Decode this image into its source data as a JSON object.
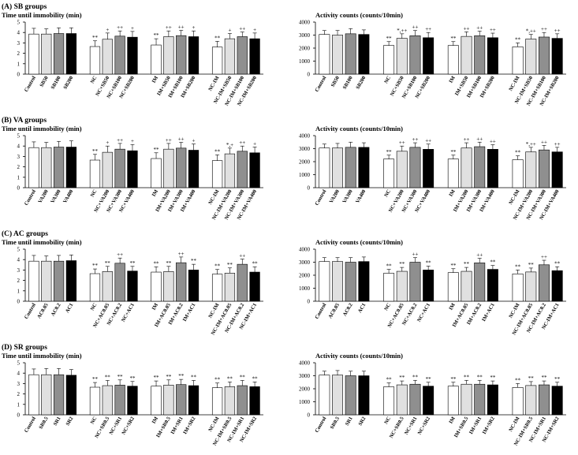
{
  "figure": {
    "sections": [
      {
        "title": "(A) SB groups",
        "left_title": "Time until immobility  (min)",
        "right_title": "Activity counts (counts/10min)",
        "categories": [
          "Control",
          "SB50",
          "SB100",
          "SB200",
          "NC",
          "NC+SB50",
          "NC+SB100",
          "NC+SB200",
          "IM",
          "IM+SB50",
          "IM+SB100",
          "IM+SB200",
          "NC-IM",
          "NC-IM+SB50",
          "NC-IM+SB100",
          "NC-IM+SB200"
        ]
      },
      {
        "title": "(B) VA groups",
        "left_title": "Time until immobility  (min)",
        "right_title": "Activity counts (counts/10min)",
        "categories": [
          "Control",
          "VA200",
          "VA300",
          "VA400",
          "NC",
          "NC+VA200",
          "NC+VA300",
          "NC+VA400",
          "IM",
          "IM+VA200",
          "IM+VA300",
          "IM+VA400",
          "NC-IM",
          "NC-IM+VA200",
          "NC-IM+VA300",
          "NC-IM+VA400"
        ]
      },
      {
        "title": "(C) AC groups",
        "left_title": "Time until immobility  (min)",
        "right_title": "Activity counts (counts/10min)",
        "categories": [
          "Control",
          "AC0.05",
          "AC0.2",
          "AC1",
          "NC",
          "NC+AC0.05",
          "NC+AC0.2",
          "NC+AC1",
          "IM",
          "IM+AC0.05",
          "IM+AC0.2",
          "IM+AC1",
          "NC-IM",
          "NC-IM+AC0.05",
          "NC-IM+AC0.2",
          "NC-IM+AC1"
        ]
      },
      {
        "title": "(D) SR groups",
        "left_title": "Time until immobility  (min)",
        "right_title": "Activity counts (counts/10min)",
        "categories": [
          "Control",
          "SR0.5",
          "SR1",
          "SR2",
          "NC",
          "NC+SR0.5",
          "NC+SR1",
          "NC+SR2",
          "IM",
          "IM+SR0.5",
          "IM+SR1",
          "IM+SR2",
          "NC-IM",
          "NC-IM+SR0.5",
          "NC-IM+SR1",
          "NC-IM+SR2"
        ]
      }
    ],
    "dose_colors": [
      "#ffffff",
      "#e0e0e0",
      "#8f8f8f",
      "#000000"
    ]
  },
  "chart_data": [
    {
      "type": "bar",
      "title": "Time until immobility  (min)",
      "ylim": [
        0,
        5
      ],
      "yticks": [
        0,
        1,
        2,
        3,
        4,
        5
      ],
      "categories": [
        "Control",
        "SB50",
        "SB100",
        "SB200",
        "NC",
        "NC+SB50",
        "NC+SB100",
        "NC+SB200",
        "IM",
        "IM+SB50",
        "IM+SB100",
        "IM+SB200",
        "NC-IM",
        "NC-IM+SB50",
        "NC-IM+SB100",
        "NC-IM+SB200"
      ],
      "values": [
        3.85,
        3.85,
        3.9,
        3.9,
        2.65,
        3.35,
        3.65,
        3.55,
        2.8,
        3.6,
        3.7,
        3.6,
        2.6,
        3.4,
        3.6,
        3.4
      ],
      "errors": [
        0.55,
        0.5,
        0.55,
        0.55,
        0.55,
        0.6,
        0.5,
        0.55,
        0.6,
        0.55,
        0.5,
        0.55,
        0.55,
        0.5,
        0.45,
        0.55
      ],
      "annotations": [
        "",
        "",
        "",
        "",
        "**",
        "+",
        "++",
        "+",
        "**",
        "++",
        "++",
        "+",
        "**",
        "+",
        "++",
        "+"
      ]
    },
    {
      "type": "bar",
      "title": "Activity counts (counts/10min)",
      "ylim": [
        0,
        4000
      ],
      "yticks": [
        0,
        1000,
        2000,
        3000,
        4000
      ],
      "categories": [
        "Control",
        "SB50",
        "SB100",
        "SB200",
        "NC",
        "NC+SB50",
        "NC+SB100",
        "NC+SB200",
        "IM",
        "IM+SB50",
        "IM+SB100",
        "IM+SB200",
        "NC-IM",
        "NC-IM+SB50",
        "NC-IM+SB100",
        "NC-IM+SB200"
      ],
      "values": [
        3050,
        3000,
        3100,
        3050,
        2200,
        2750,
        2950,
        2800,
        2200,
        2900,
        2950,
        2800,
        2100,
        2700,
        2850,
        2750
      ],
      "errors": [
        300,
        350,
        400,
        350,
        300,
        350,
        400,
        400,
        300,
        350,
        350,
        350,
        300,
        350,
        350,
        350
      ],
      "annotations": [
        "",
        "",
        "",
        "",
        "**",
        "*,++",
        "++",
        "++",
        "**",
        "++",
        "++",
        "++",
        "**",
        "*,++",
        "++",
        "++"
      ]
    },
    {
      "type": "bar",
      "title": "Time until immobility  (min)",
      "ylim": [
        0,
        5
      ],
      "yticks": [
        0,
        1,
        2,
        3,
        4,
        5
      ],
      "categories": [
        "Control",
        "VA200",
        "VA300",
        "VA400",
        "NC",
        "NC+VA200",
        "NC+VA300",
        "NC+VA400",
        "IM",
        "IM+VA200",
        "IM+VA300",
        "IM+VA400",
        "NC-IM",
        "NC-IM+VA200",
        "NC-IM+VA300",
        "NC-IM+VA400"
      ],
      "values": [
        3.85,
        3.85,
        3.9,
        3.9,
        2.65,
        3.4,
        3.7,
        3.55,
        2.8,
        3.7,
        3.8,
        3.6,
        2.6,
        3.25,
        3.5,
        3.35
      ],
      "errors": [
        0.55,
        0.5,
        0.55,
        0.6,
        0.55,
        0.6,
        0.55,
        0.6,
        0.55,
        0.55,
        0.55,
        0.6,
        0.55,
        0.55,
        0.5,
        0.55
      ],
      "annotations": [
        "",
        "",
        "",
        "",
        "**",
        "+",
        "++",
        "+",
        "**",
        "++",
        "++",
        "+",
        "**",
        "*,+",
        "++",
        "+"
      ]
    },
    {
      "type": "bar",
      "title": "Activity counts (counts/10min)",
      "ylim": [
        0,
        4000
      ],
      "yticks": [
        0,
        1000,
        2000,
        3000,
        4000
      ],
      "categories": [
        "Control",
        "VA200",
        "VA300",
        "VA400",
        "NC",
        "NC+VA200",
        "NC+VA300",
        "NC+VA400",
        "IM",
        "IM+VA200",
        "IM+VA300",
        "IM+VA400",
        "NC-IM",
        "NC-IM+VA200",
        "NC-IM+VA300",
        "NC-IM+VA400"
      ],
      "values": [
        3050,
        3050,
        3100,
        3100,
        2200,
        2800,
        3100,
        2950,
        2200,
        3050,
        3150,
        2950,
        2150,
        2750,
        2900,
        2750
      ],
      "errors": [
        300,
        350,
        400,
        350,
        300,
        400,
        350,
        400,
        300,
        400,
        350,
        350,
        300,
        350,
        350,
        350
      ],
      "annotations": [
        "",
        "",
        "",
        "",
        "**",
        "++",
        "++",
        "++",
        "**",
        "++",
        "++",
        "++",
        "**",
        "*,++",
        "++",
        "++"
      ]
    },
    {
      "type": "bar",
      "title": "Time until immobility  (min)",
      "ylim": [
        0,
        5
      ],
      "yticks": [
        0,
        1,
        2,
        3,
        4,
        5
      ],
      "categories": [
        "Control",
        "AC0.05",
        "AC0.2",
        "AC1",
        "NC",
        "NC+AC0.05",
        "NC+AC0.2",
        "NC+AC1",
        "IM",
        "IM+AC0.05",
        "IM+AC0.2",
        "IM+AC1",
        "NC-IM",
        "NC-IM+AC0.05",
        "NC-IM+AC0.2",
        "NC-IM+AC1"
      ],
      "values": [
        3.85,
        3.85,
        3.85,
        3.9,
        2.65,
        2.85,
        3.65,
        2.9,
        2.8,
        2.85,
        3.7,
        3.0,
        2.6,
        2.7,
        3.55,
        2.8
      ],
      "errors": [
        0.55,
        0.5,
        0.55,
        0.55,
        0.45,
        0.5,
        0.5,
        0.45,
        0.5,
        0.5,
        0.55,
        0.55,
        0.45,
        0.5,
        0.5,
        0.5
      ],
      "annotations": [
        "",
        "",
        "",
        "",
        "**",
        "**",
        "++",
        "**",
        "**",
        "**",
        "++",
        "**",
        "**",
        "**",
        "++",
        "**"
      ]
    },
    {
      "type": "bar",
      "title": "Activity counts (counts/10min)",
      "ylim": [
        0,
        4000
      ],
      "yticks": [
        0,
        1000,
        2000,
        3000,
        4000
      ],
      "categories": [
        "Control",
        "AC0.05",
        "AC0.2",
        "AC1",
        "NC",
        "NC+AC0.05",
        "NC+AC0.2",
        "NC+AC1",
        "IM",
        "IM+AC0.05",
        "IM+AC0.2",
        "IM+AC1",
        "NC-IM",
        "NC-IM+AC0.05",
        "NC-IM+AC0.2",
        "NC-IM+AC1"
      ],
      "values": [
        3050,
        3050,
        3000,
        3050,
        2150,
        2300,
        3000,
        2400,
        2200,
        2300,
        2950,
        2450,
        2100,
        2250,
        2800,
        2350
      ],
      "errors": [
        300,
        300,
        350,
        350,
        300,
        300,
        350,
        300,
        300,
        300,
        350,
        300,
        300,
        300,
        350,
        300
      ],
      "annotations": [
        "",
        "",
        "",
        "",
        "**",
        "**",
        "++",
        "**",
        "**",
        "**",
        "++",
        "**",
        "**",
        "**",
        "++",
        "**"
      ]
    },
    {
      "type": "bar",
      "title": "Time until immobility  (min)",
      "ylim": [
        0,
        5
      ],
      "yticks": [
        0,
        1,
        2,
        3,
        4,
        5
      ],
      "categories": [
        "Control",
        "SR0.5",
        "SR1",
        "SR2",
        "NC",
        "NC+SR0.5",
        "NC+SR1",
        "NC+SR2",
        "IM",
        "IM+SR0.5",
        "IM+SR1",
        "IM+SR2",
        "NC-IM",
        "NC-IM+SR0.5",
        "NC-IM+SR1",
        "NC-IM+SR2"
      ],
      "values": [
        3.85,
        3.85,
        3.85,
        3.8,
        2.65,
        2.8,
        2.85,
        2.75,
        2.75,
        2.85,
        2.9,
        2.8,
        2.6,
        2.7,
        2.8,
        2.7
      ],
      "errors": [
        0.55,
        0.6,
        0.6,
        0.55,
        0.45,
        0.5,
        0.5,
        0.45,
        0.5,
        0.5,
        0.5,
        0.5,
        0.45,
        0.45,
        0.5,
        0.45
      ],
      "annotations": [
        "",
        "",
        "",
        "",
        "**",
        "**",
        "**",
        "**",
        "**",
        "**",
        "**",
        "**",
        "**",
        "**",
        "**",
        "**"
      ]
    },
    {
      "type": "bar",
      "title": "Activity counts (counts/10min)",
      "ylim": [
        0,
        4000
      ],
      "yticks": [
        0,
        1000,
        2000,
        3000,
        4000
      ],
      "categories": [
        "Control",
        "SR0.5",
        "SR1",
        "SR2",
        "NC",
        "NC+SR0.5",
        "NC+SR1",
        "NC+SR2",
        "IM",
        "IM+SR0.5",
        "IM+SR1",
        "IM+SR2",
        "NC-IM",
        "NC-IM+SR0.5",
        "NC-IM+SR1",
        "NC-IM+SR2"
      ],
      "values": [
        3050,
        3050,
        3000,
        3000,
        2150,
        2300,
        2350,
        2200,
        2200,
        2350,
        2350,
        2300,
        2100,
        2250,
        2300,
        2200
      ],
      "errors": [
        300,
        350,
        350,
        350,
        300,
        300,
        300,
        300,
        300,
        300,
        300,
        300,
        300,
        300,
        300,
        300
      ],
      "annotations": [
        "",
        "",
        "",
        "",
        "**",
        "**",
        "**",
        "**",
        "**",
        "**",
        "**",
        "**",
        "**",
        "**",
        "**",
        "**"
      ]
    }
  ]
}
